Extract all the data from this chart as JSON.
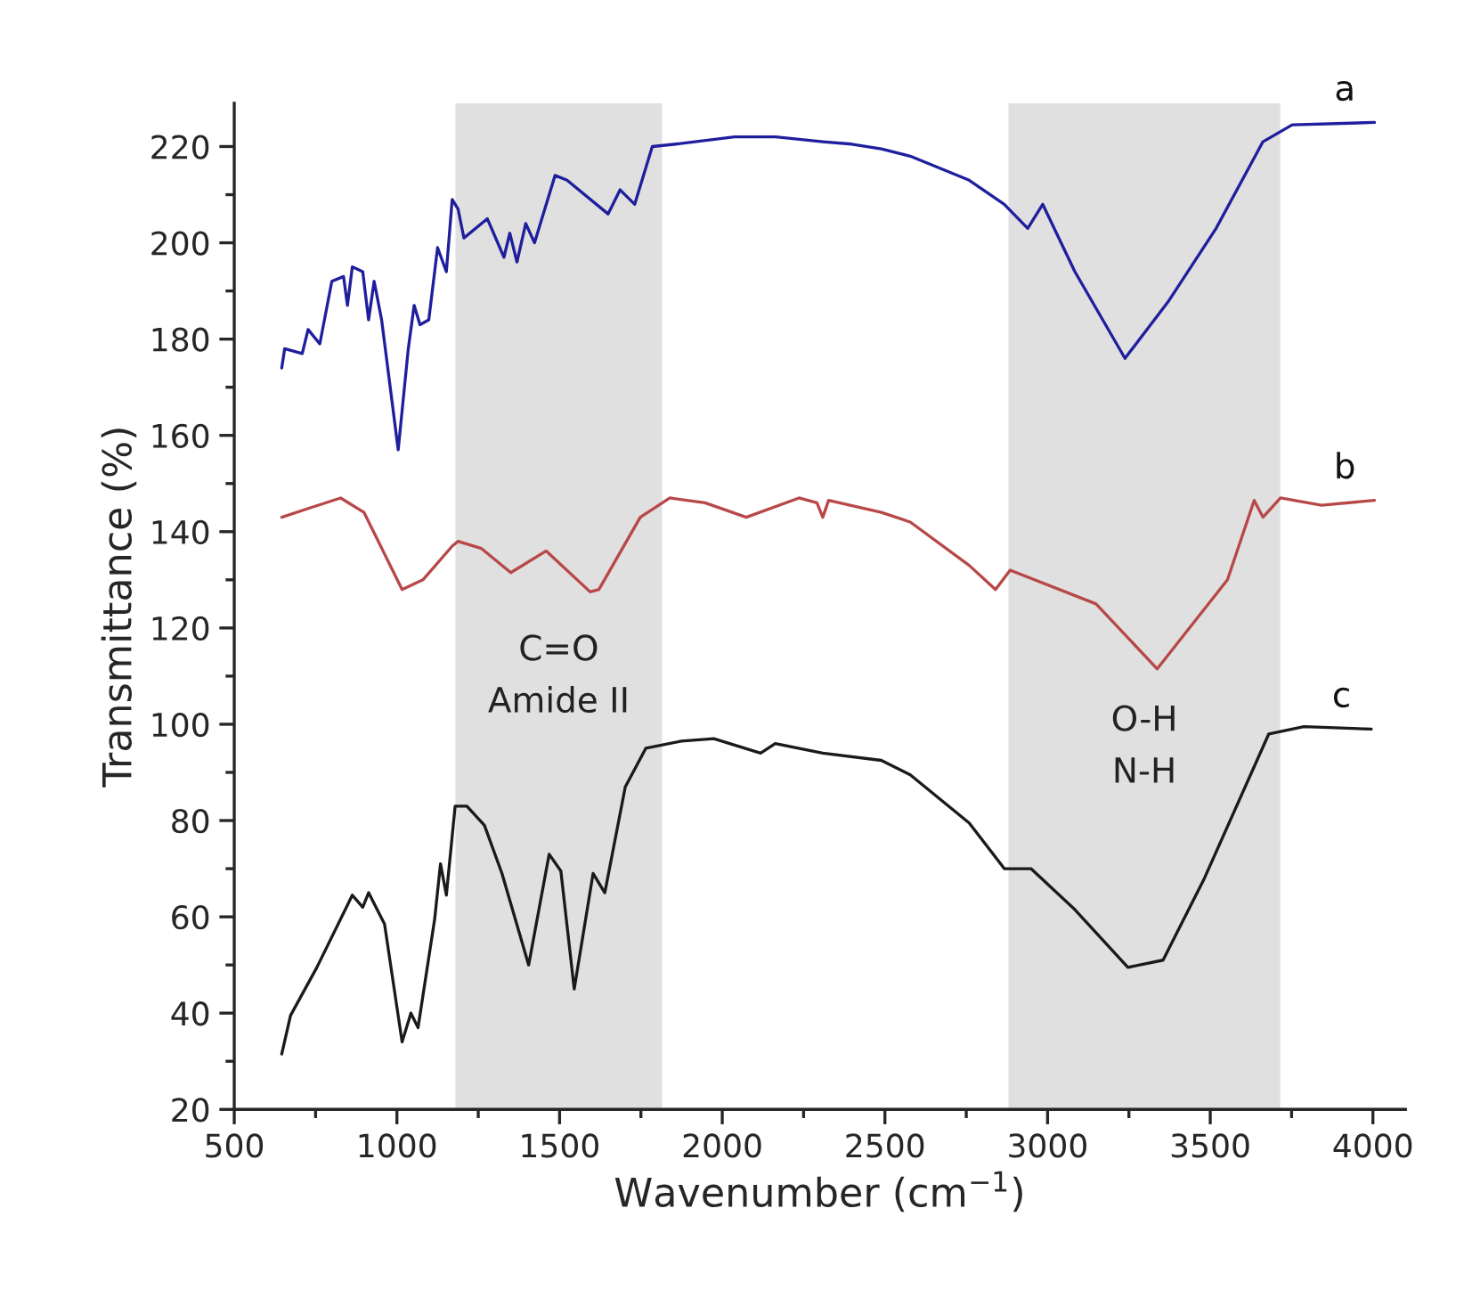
{
  "chart_data": {
    "type": "line",
    "xlabel": "Wavenumber (cm$^{−1}$)",
    "ylabel": "Transmittance (%)",
    "xlim": [
      500,
      4100
    ],
    "xticks": [
      500,
      1000,
      1500,
      2000,
      2500,
      3000,
      3500,
      4000
    ],
    "ylim": [
      20,
      229
    ],
    "yticks": [
      20,
      40,
      60,
      80,
      100,
      120,
      140,
      160,
      180,
      200,
      220
    ],
    "grid": false,
    "legend": false,
    "marker": "none",
    "line_style": "solid",
    "bands": [
      {
        "axis": "x",
        "from": 1180,
        "to": 1815,
        "label": "C=O\nAmide II",
        "color": "#e0e0e0"
      },
      {
        "axis": "x",
        "from": 2880,
        "to": 3715,
        "label": "O-H\nN-H",
        "color": "#e0e0e0"
      }
    ],
    "series": [
      {
        "name": "a",
        "color": "#1f1f9e",
        "x": [
          646,
          655,
          709,
          727,
          763,
          800,
          836,
          848,
          863,
          895,
          913,
          930,
          953,
          1004,
          1035,
          1053,
          1071,
          1098,
          1125,
          1152,
          1170,
          1188,
          1206,
          1278,
          1329,
          1347,
          1369,
          1396,
          1423,
          1486,
          1523,
          1649,
          1686,
          1731,
          1785,
          1857,
          2038,
          2164,
          2309,
          2398,
          2489,
          2578,
          2759,
          2867,
          2939,
          2985,
          3084,
          3238,
          3373,
          3518,
          3662,
          3752,
          4005
        ],
        "values": [
          174,
          178,
          177,
          182,
          179,
          192,
          193,
          187,
          195,
          194,
          184,
          192,
          184,
          157,
          178,
          187,
          183,
          184,
          199,
          194,
          209,
          207,
          201,
          205,
          197,
          202,
          196,
          204,
          200,
          214,
          213,
          206,
          211,
          208,
          220,
          220.5,
          222,
          222,
          221,
          220.5,
          219.5,
          218,
          213,
          208,
          203,
          208,
          194,
          176,
          188,
          203,
          221,
          224.5,
          225
        ]
      },
      {
        "name": "b",
        "color": "#b84848",
        "x": [
          646,
          736,
          827,
          899,
          1016,
          1080,
          1170,
          1188,
          1260,
          1350,
          1459,
          1594,
          1621,
          1748,
          1839,
          1947,
          2074,
          2236,
          2291,
          2309,
          2327,
          2489,
          2578,
          2759,
          2840,
          2885,
          3149,
          3337,
          3553,
          3635,
          3662,
          3716,
          3842,
          4005
        ],
        "values": [
          143,
          145,
          147,
          144,
          128,
          130,
          137,
          138,
          136.5,
          131.5,
          136,
          127.5,
          128,
          143,
          147,
          146,
          143,
          147,
          146,
          143,
          146.5,
          144,
          142,
          133,
          128,
          132,
          125,
          111.5,
          130,
          146.5,
          143,
          147,
          145.5,
          146.5
        ]
      },
      {
        "name": "c",
        "color": "#1a1a1a",
        "x": [
          646,
          673,
          754,
          863,
          895,
          913,
          962,
          1016,
          1043,
          1065,
          1116,
          1134,
          1152,
          1179,
          1215,
          1269,
          1323,
          1405,
          1468,
          1504,
          1545,
          1603,
          1639,
          1702,
          1765,
          1874,
          1974,
          2118,
          2163,
          2309,
          2489,
          2578,
          2759,
          2867,
          2949,
          3084,
          3247,
          3355,
          3482,
          3680,
          3788,
          3995
        ],
        "values": [
          31.5,
          39.5,
          49.5,
          64.5,
          62,
          65,
          58.5,
          34,
          40,
          37,
          59.5,
          71,
          64.5,
          83,
          83,
          79,
          69,
          50,
          73,
          69.5,
          45,
          69,
          65,
          87,
          95,
          96.5,
          97,
          94,
          96,
          94,
          92.5,
          89.5,
          79.5,
          70,
          70,
          61.5,
          49.5,
          51,
          68,
          98,
          99.5,
          99
        ]
      }
    ]
  }
}
